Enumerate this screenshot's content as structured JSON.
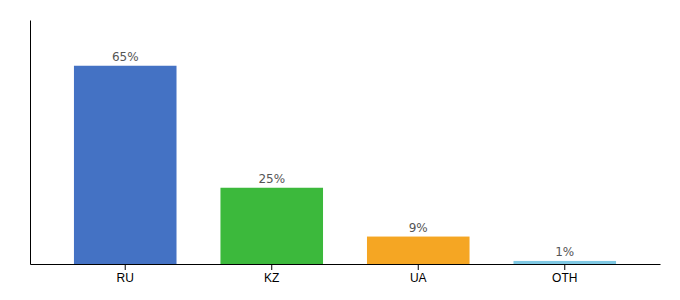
{
  "chart_data": {
    "type": "bar",
    "categories": [
      "RU",
      "KZ",
      "UA",
      "OTH"
    ],
    "values": [
      65,
      25,
      9,
      1
    ],
    "value_labels": [
      "65%",
      "25%",
      "9%",
      "1%"
    ],
    "colors": [
      "#4472C4",
      "#3CB93C",
      "#F5A623",
      "#7EC8E3"
    ],
    "ylim": [
      0,
      80
    ],
    "data_labels": true,
    "tick_labels": "x"
  }
}
